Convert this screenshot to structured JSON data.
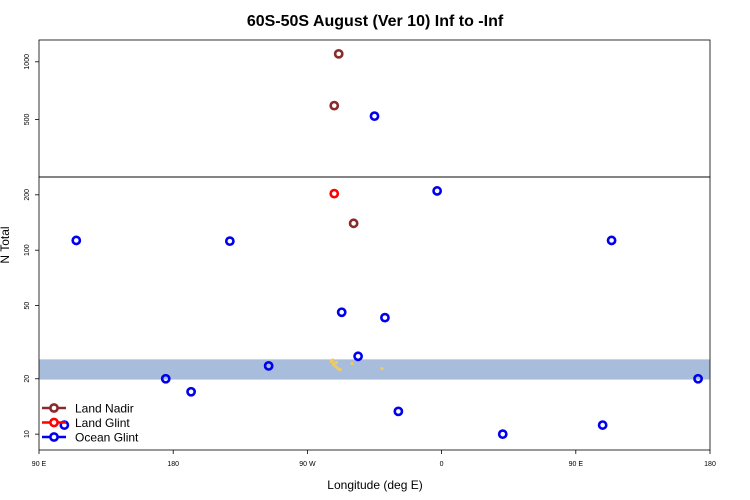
{
  "chart_data": {
    "type": "scatter",
    "title": "60S-50S August (Ver 10)   Inf to -Inf",
    "xlabel": "Longitude (deg E)",
    "ylabel": "N Total",
    "x_ticks": [
      {
        "value": 90,
        "label": "90 E"
      },
      {
        "value": 180,
        "label": "180"
      },
      {
        "value": 270,
        "label": "90 W"
      },
      {
        "value": 360,
        "label": "0"
      },
      {
        "value": 450,
        "label": "90 E"
      },
      {
        "value": 540,
        "label": "180"
      }
    ],
    "xlim": [
      90,
      540
    ],
    "y_scale": "log",
    "upper_panel": {
      "ylim": [
        250,
        1300
      ],
      "y_ticks": [
        {
          "value": 500,
          "label": "500"
        },
        {
          "value": 1000,
          "label": "1000"
        }
      ]
    },
    "lower_panel": {
      "ylim": [
        8.2,
        250
      ],
      "y_ticks": [
        {
          "value": 10,
          "label": "10"
        },
        {
          "value": 20,
          "label": "20"
        },
        {
          "value": 50,
          "label": "50"
        },
        {
          "value": 100,
          "label": "100"
        },
        {
          "value": 200,
          "label": "200"
        }
      ],
      "band": {
        "from": 19.8,
        "to": 25.5,
        "color": "#a7bddb"
      }
    },
    "series": [
      {
        "name": "Land Nadir",
        "color": "#8b2a2a",
        "points": [
          {
            "x": 291,
            "y": 1100
          },
          {
            "x": 288,
            "y": 590
          },
          {
            "x": 301,
            "y": 140
          }
        ]
      },
      {
        "name": "Land Glint",
        "color": "#ff0000",
        "points": [
          {
            "x": 288,
            "y": 203
          }
        ]
      },
      {
        "name": "Ocean Glint",
        "color": "#0000ee",
        "points": [
          {
            "x": 315,
            "y": 520
          },
          {
            "x": 357,
            "y": 210
          },
          {
            "x": 115,
            "y": 113
          },
          {
            "x": 218,
            "y": 112
          },
          {
            "x": 474,
            "y": 113
          },
          {
            "x": 293,
            "y": 46
          },
          {
            "x": 322,
            "y": 43
          },
          {
            "x": 304,
            "y": 26.5
          },
          {
            "x": 244,
            "y": 23.5
          },
          {
            "x": 175,
            "y": 20
          },
          {
            "x": 532,
            "y": 20
          },
          {
            "x": 192,
            "y": 17
          },
          {
            "x": 331,
            "y": 13.3
          },
          {
            "x": 107,
            "y": 11.2
          },
          {
            "x": 468,
            "y": 11.2
          },
          {
            "x": 401,
            "y": 10
          }
        ]
      }
    ],
    "land_cluster": {
      "color": "#f2cc5a",
      "points": [
        {
          "x": 286,
          "y": 24.8
        },
        {
          "x": 287.5,
          "y": 23.9
        },
        {
          "x": 289,
          "y": 23.3
        },
        {
          "x": 288,
          "y": 24.2
        },
        {
          "x": 290.5,
          "y": 22.7
        },
        {
          "x": 292,
          "y": 22.4
        },
        {
          "x": 287,
          "y": 25.3
        },
        {
          "x": 289.5,
          "y": 24.5
        },
        {
          "x": 300,
          "y": 24.2
        },
        {
          "x": 320,
          "y": 22.7
        }
      ]
    },
    "legend": {
      "position": "bottom-left",
      "entries": [
        {
          "label": "Land Nadir",
          "color": "#8b2a2a"
        },
        {
          "label": "Land Glint",
          "color": "#ff0000"
        },
        {
          "label": "Ocean Glint",
          "color": "#0000ee"
        }
      ]
    }
  }
}
